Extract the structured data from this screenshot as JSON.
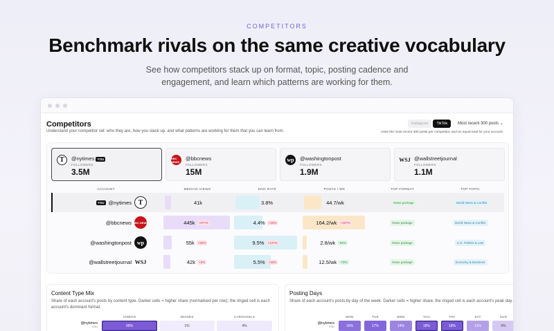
{
  "hero": {
    "eyebrow": "COMPETITORS",
    "headline": "Benchmark rivals on the same creative vocabulary",
    "subtitle": "See how competitors stack up on format, topic, posting cadence and engagement, and learn which patterns are working for them."
  },
  "app": {
    "title": "Competitors",
    "description": "Understand your competitor set: who they are, how you stack up, and what patterns are working for them that you can learn from.",
    "platforms": [
      "Instagram",
      "TikTok"
    ],
    "active_platform": "TikTok",
    "range_label": "Most recent 300 posts",
    "note": "Uses the most recent 300 posts per competitor, and an equal total for your account."
  },
  "accounts": [
    {
      "handle": "@nytimes",
      "you": true,
      "you_label": "YOU",
      "followers_label": "FOLLOWERS",
      "followers": "3.5M",
      "logo": "nyt-logo-icon",
      "logo_text": "T"
    },
    {
      "handle": "@bbcnews",
      "you": false,
      "followers_label": "FOLLOWERS",
      "followers": "15M",
      "logo": "bbc-logo-icon",
      "logo_text": "BBC NEWS"
    },
    {
      "handle": "@washingtonpost",
      "you": false,
      "followers_label": "FOLLOWERS",
      "followers": "1.9M",
      "logo": "wapo-logo-icon",
      "logo_text": "wp"
    },
    {
      "handle": "@wallstreetjournal",
      "you": false,
      "followers_label": "FOLLOWERS",
      "followers": "1.1M",
      "logo": "wsj-logo-icon",
      "logo_text": "WSJ"
    }
  ],
  "table": {
    "headers": [
      "ACCOUNT",
      "MEDIAN VIEWS",
      "ENG RATE",
      "POSTS / WK",
      "TOP FORMAT",
      "TOP TOPIC"
    ],
    "rows": [
      {
        "handle": "@nytimes",
        "you_label": "YOU",
        "views": "41k",
        "views_frac": 0.09,
        "views_delta": "",
        "eng": "3.8%",
        "eng_frac": 0.39,
        "eng_delta": "",
        "posts": "44.7/wk",
        "posts_frac": 0.28,
        "posts_delta": "",
        "format": "News package",
        "topic": "World News & Conflict"
      },
      {
        "handle": "@bbcnews",
        "views": "445k",
        "views_frac": 1.0,
        "views_delta": "+977%",
        "eng": "4.4%",
        "eng_frac": 0.45,
        "eng_delta": "+15%",
        "posts": "164.2/wk",
        "posts_frac": 1.0,
        "posts_delta": "+267%",
        "format": "News package",
        "topic": "World News & Conflict"
      },
      {
        "handle": "@washingtonpost",
        "views": "55k",
        "views_frac": 0.13,
        "views_delta": "+32%",
        "eng": "9.5%",
        "eng_frac": 1.0,
        "eng_delta": "+147%",
        "posts": "2.8/wk",
        "posts_frac": 0.02,
        "posts_delta": "-94%",
        "format": "News package",
        "topic": "U.S. Politics & Law"
      },
      {
        "handle": "@wallstreetjournal",
        "views": "42k",
        "views_frac": 0.1,
        "views_delta": "+2%",
        "eng": "5.5%",
        "eng_frac": 0.58,
        "eng_delta": "+43%",
        "posts": "12.5/wk",
        "posts_frac": 0.08,
        "posts_delta": "-72%",
        "format": "News package",
        "topic": "Economy & Business"
      }
    ]
  },
  "content_mix": {
    "title": "Content Type Mix",
    "description": "Share of each account's posts by content type. Darker cells = higher share (normalised per row); the ringed cell is each account's dominant format.",
    "columns": [
      "VIDEOS",
      "IMAGES",
      "CAROUSELS"
    ],
    "rows": [
      {
        "handle": "@nytimes",
        "you_label": "YOU",
        "values": [
          "95%",
          "1%",
          "4%"
        ],
        "shares": [
          95,
          1,
          4
        ]
      }
    ]
  },
  "posting_days": {
    "title": "Posting Days",
    "description": "Share of each account's posts by day of the week. Darker cells = higher share; the ringed cell is each account's peak day.",
    "columns": [
      "MON",
      "TUE",
      "WED",
      "THU",
      "FRI",
      "SAT",
      "SUN"
    ],
    "rows": [
      {
        "handle": "@nytimes",
        "you_label": "YOU",
        "values": [
          "16%",
          "17%",
          "14%",
          "18%",
          "18%",
          "11%",
          "6%"
        ],
        "shares": [
          16,
          17,
          14,
          18,
          18,
          11,
          6
        ]
      }
    ]
  },
  "colors": {
    "accent": "#6d5fd9",
    "views_bar": "#e9dcf9",
    "eng_bar": "#d9f0f7",
    "posts_bar": "#fbe7c8",
    "heat_high": "#7b5cd6",
    "heat_low": "#f1ecfc"
  }
}
